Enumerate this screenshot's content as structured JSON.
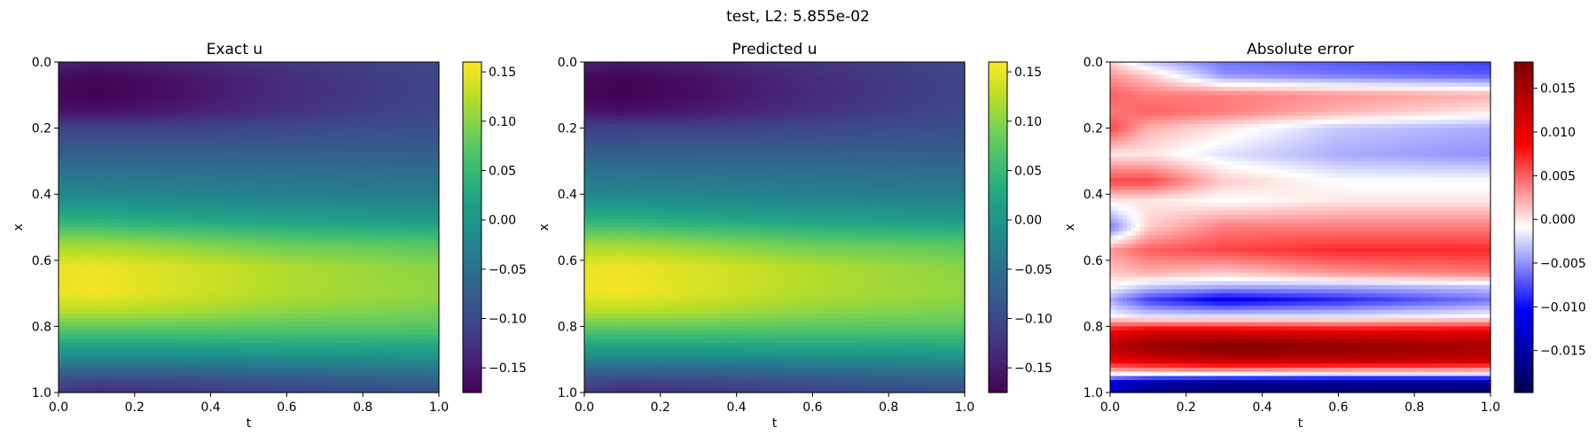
{
  "figure": {
    "suptitle": "test, L2: 5.855e-02"
  },
  "chart_data": [
    {
      "type": "heatmap",
      "title": "Exact u",
      "xlabel": "t",
      "ylabel": "x",
      "xlim": [
        0.0,
        1.0
      ],
      "ylim": [
        1.0,
        0.0
      ],
      "xticks": [
        "0.0",
        "0.2",
        "0.4",
        "0.6",
        "0.8",
        "1.0"
      ],
      "yticks": [
        "0.0",
        "0.2",
        "0.4",
        "0.6",
        "0.8",
        "1.0"
      ],
      "colormap": "viridis",
      "color_range": [
        -0.175,
        0.16
      ],
      "colorbar_ticks": [
        "0.15",
        "0.10",
        "0.05",
        "0.00",
        "−0.05",
        "−0.10",
        "−0.15"
      ],
      "colorbar_tick_values": [
        0.15,
        0.1,
        0.05,
        0.0,
        -0.05,
        -0.1,
        -0.15
      ],
      "x_samples": [
        0.0,
        0.1,
        0.3,
        0.6,
        1.0
      ],
      "y_samples": [
        0.0,
        0.05,
        0.1,
        0.15,
        0.2,
        0.3,
        0.4,
        0.48,
        0.55,
        0.62,
        0.7,
        0.76,
        0.82,
        0.88,
        0.93,
        0.97,
        1.0
      ],
      "values": [
        [
          -0.14,
          -0.15,
          -0.14,
          -0.12,
          -0.1
        ],
        [
          -0.165,
          -0.172,
          -0.158,
          -0.13,
          -0.105
        ],
        [
          -0.17,
          -0.175,
          -0.16,
          -0.132,
          -0.105
        ],
        [
          -0.155,
          -0.16,
          -0.148,
          -0.125,
          -0.1
        ],
        [
          -0.11,
          -0.11,
          -0.108,
          -0.1,
          -0.09
        ],
        [
          -0.06,
          -0.06,
          -0.06,
          -0.062,
          -0.065
        ],
        [
          -0.02,
          -0.02,
          -0.025,
          -0.03,
          -0.035
        ],
        [
          0.04,
          0.04,
          0.03,
          0.02,
          0.01
        ],
        [
          0.11,
          0.11,
          0.1,
          0.08,
          0.07
        ],
        [
          0.15,
          0.152,
          0.14,
          0.12,
          0.1
        ],
        [
          0.15,
          0.155,
          0.14,
          0.12,
          0.105
        ],
        [
          0.12,
          0.12,
          0.115,
          0.1,
          0.09
        ],
        [
          0.06,
          0.06,
          0.06,
          0.06,
          0.06
        ],
        [
          0.0,
          0.0,
          0.0,
          0.005,
          0.01
        ],
        [
          -0.06,
          -0.06,
          -0.06,
          -0.05,
          -0.04
        ],
        [
          -0.1,
          -0.11,
          -0.105,
          -0.09,
          -0.075
        ],
        [
          -0.12,
          -0.13,
          -0.12,
          -0.105,
          -0.09
        ]
      ]
    },
    {
      "type": "heatmap",
      "title": "Predicted u",
      "xlabel": "t",
      "ylabel": "x",
      "xlim": [
        0.0,
        1.0
      ],
      "ylim": [
        1.0,
        0.0
      ],
      "xticks": [
        "0.0",
        "0.2",
        "0.4",
        "0.6",
        "0.8",
        "1.0"
      ],
      "yticks": [
        "0.0",
        "0.2",
        "0.4",
        "0.6",
        "0.8",
        "1.0"
      ],
      "colormap": "viridis",
      "color_range": [
        -0.175,
        0.16
      ],
      "colorbar_ticks": [
        "0.15",
        "0.10",
        "0.05",
        "0.00",
        "−0.05",
        "−0.10",
        "−0.15"
      ],
      "colorbar_tick_values": [
        0.15,
        0.1,
        0.05,
        0.0,
        -0.05,
        -0.1,
        -0.15
      ],
      "x_samples": [
        0.0,
        0.1,
        0.3,
        0.6,
        1.0
      ],
      "y_samples": [
        0.0,
        0.05,
        0.1,
        0.15,
        0.2,
        0.3,
        0.4,
        0.48,
        0.55,
        0.62,
        0.7,
        0.76,
        0.82,
        0.88,
        0.93,
        0.97,
        1.0
      ],
      "values": [
        [
          -0.142,
          -0.152,
          -0.141,
          -0.121,
          -0.101
        ],
        [
          -0.166,
          -0.173,
          -0.159,
          -0.131,
          -0.106
        ],
        [
          -0.171,
          -0.175,
          -0.161,
          -0.133,
          -0.106
        ],
        [
          -0.155,
          -0.161,
          -0.149,
          -0.126,
          -0.101
        ],
        [
          -0.111,
          -0.111,
          -0.109,
          -0.101,
          -0.091
        ],
        [
          -0.061,
          -0.061,
          -0.061,
          -0.062,
          -0.065
        ],
        [
          -0.02,
          -0.021,
          -0.025,
          -0.03,
          -0.035
        ],
        [
          0.04,
          0.041,
          0.031,
          0.021,
          0.011
        ],
        [
          0.11,
          0.111,
          0.101,
          0.081,
          0.071
        ],
        [
          0.15,
          0.153,
          0.141,
          0.121,
          0.101
        ],
        [
          0.151,
          0.156,
          0.141,
          0.121,
          0.106
        ],
        [
          0.12,
          0.121,
          0.116,
          0.101,
          0.091
        ],
        [
          0.06,
          0.061,
          0.061,
          0.061,
          0.061
        ],
        [
          0.0,
          0.001,
          0.001,
          0.005,
          0.01
        ],
        [
          -0.061,
          -0.061,
          -0.061,
          -0.051,
          -0.041
        ],
        [
          -0.101,
          -0.111,
          -0.106,
          -0.091,
          -0.076
        ],
        [
          -0.121,
          -0.131,
          -0.121,
          -0.106,
          -0.091
        ]
      ]
    },
    {
      "type": "heatmap",
      "title": "Absolute error",
      "xlabel": "t",
      "ylabel": "x",
      "xlim": [
        0.0,
        1.0
      ],
      "ylim": [
        1.0,
        0.0
      ],
      "xticks": [
        "0.0",
        "0.2",
        "0.4",
        "0.6",
        "0.8",
        "1.0"
      ],
      "yticks": [
        "0.0",
        "0.2",
        "0.4",
        "0.6",
        "0.8",
        "1.0"
      ],
      "colormap": "seismic",
      "color_range": [
        -0.0198,
        0.018
      ],
      "colorbar_ticks": [
        "0.015",
        "0.010",
        "0.005",
        "0.000",
        "−0.005",
        "−0.010",
        "−0.015"
      ],
      "colorbar_tick_values": [
        0.015,
        0.01,
        0.005,
        0.0,
        -0.005,
        -0.01,
        -0.015
      ],
      "x_samples": [
        0.0,
        0.1,
        0.3,
        0.6,
        1.0
      ],
      "y_samples": [
        0.0,
        0.04,
        0.1,
        0.15,
        0.2,
        0.28,
        0.36,
        0.42,
        0.5,
        0.57,
        0.64,
        0.68,
        0.72,
        0.77,
        0.82,
        0.86,
        0.9,
        0.94,
        0.97,
        1.0
      ],
      "values": [
        [
          0.001,
          -0.003,
          -0.006,
          -0.007,
          -0.008
        ],
        [
          0.003,
          0.001,
          -0.005,
          -0.006,
          -0.007
        ],
        [
          0.005,
          0.004,
          0.004,
          0.003,
          0.002
        ],
        [
          0.004,
          0.005,
          0.004,
          0.002,
          0.0
        ],
        [
          0.006,
          0.002,
          0.0,
          -0.003,
          -0.004
        ],
        [
          0.0,
          0.0,
          -0.002,
          -0.004,
          -0.005
        ],
        [
          0.006,
          0.006,
          0.001,
          -0.001,
          -0.001
        ],
        [
          0.0,
          0.0,
          -0.001,
          0.0,
          0.0
        ],
        [
          -0.006,
          0.001,
          0.004,
          0.004,
          0.004
        ],
        [
          0.003,
          0.005,
          0.006,
          0.007,
          0.007
        ],
        [
          0.001,
          0.002,
          0.001,
          0.003,
          0.004
        ],
        [
          -0.001,
          -0.003,
          -0.004,
          -0.004,
          -0.003
        ],
        [
          -0.004,
          -0.008,
          -0.011,
          -0.009,
          -0.006
        ],
        [
          -0.001,
          -0.002,
          -0.002,
          -0.002,
          -0.001
        ],
        [
          0.01,
          0.012,
          0.012,
          0.011,
          0.011
        ],
        [
          0.014,
          0.016,
          0.018,
          0.017,
          0.015
        ],
        [
          0.01,
          0.012,
          0.014,
          0.014,
          0.013
        ],
        [
          0.001,
          0.001,
          0.001,
          0.0,
          0.0
        ],
        [
          -0.012,
          -0.015,
          -0.016,
          -0.016,
          -0.016
        ],
        [
          -0.014,
          -0.017,
          -0.018,
          -0.018,
          -0.018
        ]
      ]
    }
  ]
}
